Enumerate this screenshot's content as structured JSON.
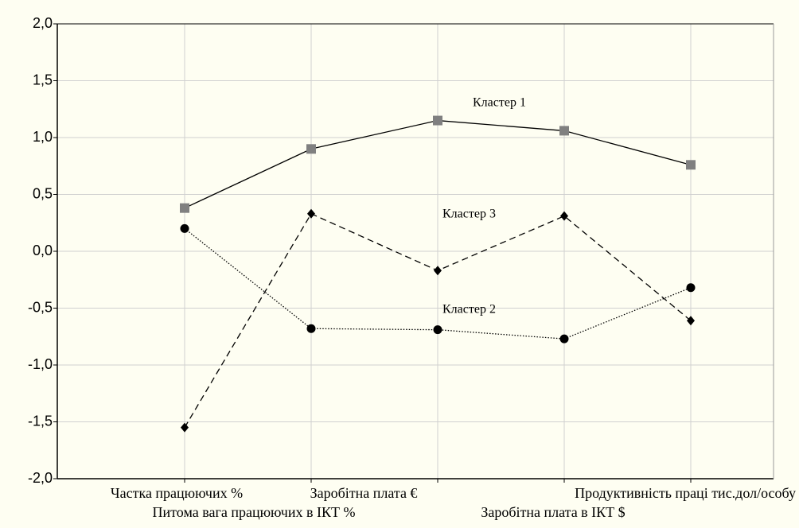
{
  "chart_data": {
    "type": "line",
    "categories": [
      "Частка працюючих %",
      "Питома вага працюючих в ІКТ %",
      "Заробітна плата €",
      "Заробітна плата в ІКТ $",
      "Продуктивність праці  тис.дол/особу"
    ],
    "series": [
      {
        "name": "Кластер 1",
        "color": "#000000",
        "marker": "square",
        "marker_color": "#808080",
        "dash": "solid",
        "values": [
          0.38,
          0.9,
          1.15,
          1.06,
          0.76
        ]
      },
      {
        "name": "Кластер 2",
        "color": "#000000",
        "marker": "circle",
        "marker_color": "#000000",
        "dash": "dotted",
        "values": [
          0.2,
          -0.68,
          -0.69,
          -0.77,
          -0.32
        ]
      },
      {
        "name": "Кластер 3",
        "color": "#000000",
        "marker": "diamond",
        "marker_color": "#000000",
        "dash": "dashed",
        "values": [
          -1.55,
          0.33,
          -0.17,
          0.31,
          -0.61
        ]
      }
    ],
    "ylim": [
      -2.0,
      2.0
    ],
    "yticks": [
      {
        "value": -2.0,
        "label": "-2,0"
      },
      {
        "value": -1.5,
        "label": "-1,5"
      },
      {
        "value": -1.0,
        "label": "-1,0"
      },
      {
        "value": -0.5,
        "label": "-0,5"
      },
      {
        "value": 0,
        "label": "0,0"
      },
      {
        "value": 0.5,
        "label": "0,5"
      },
      {
        "value": 1.0,
        "label": "1,0"
      },
      {
        "value": 1.5,
        "label": "1,5"
      },
      {
        "value": 2.0,
        "label": "2,0"
      }
    ],
    "grid": true
  }
}
